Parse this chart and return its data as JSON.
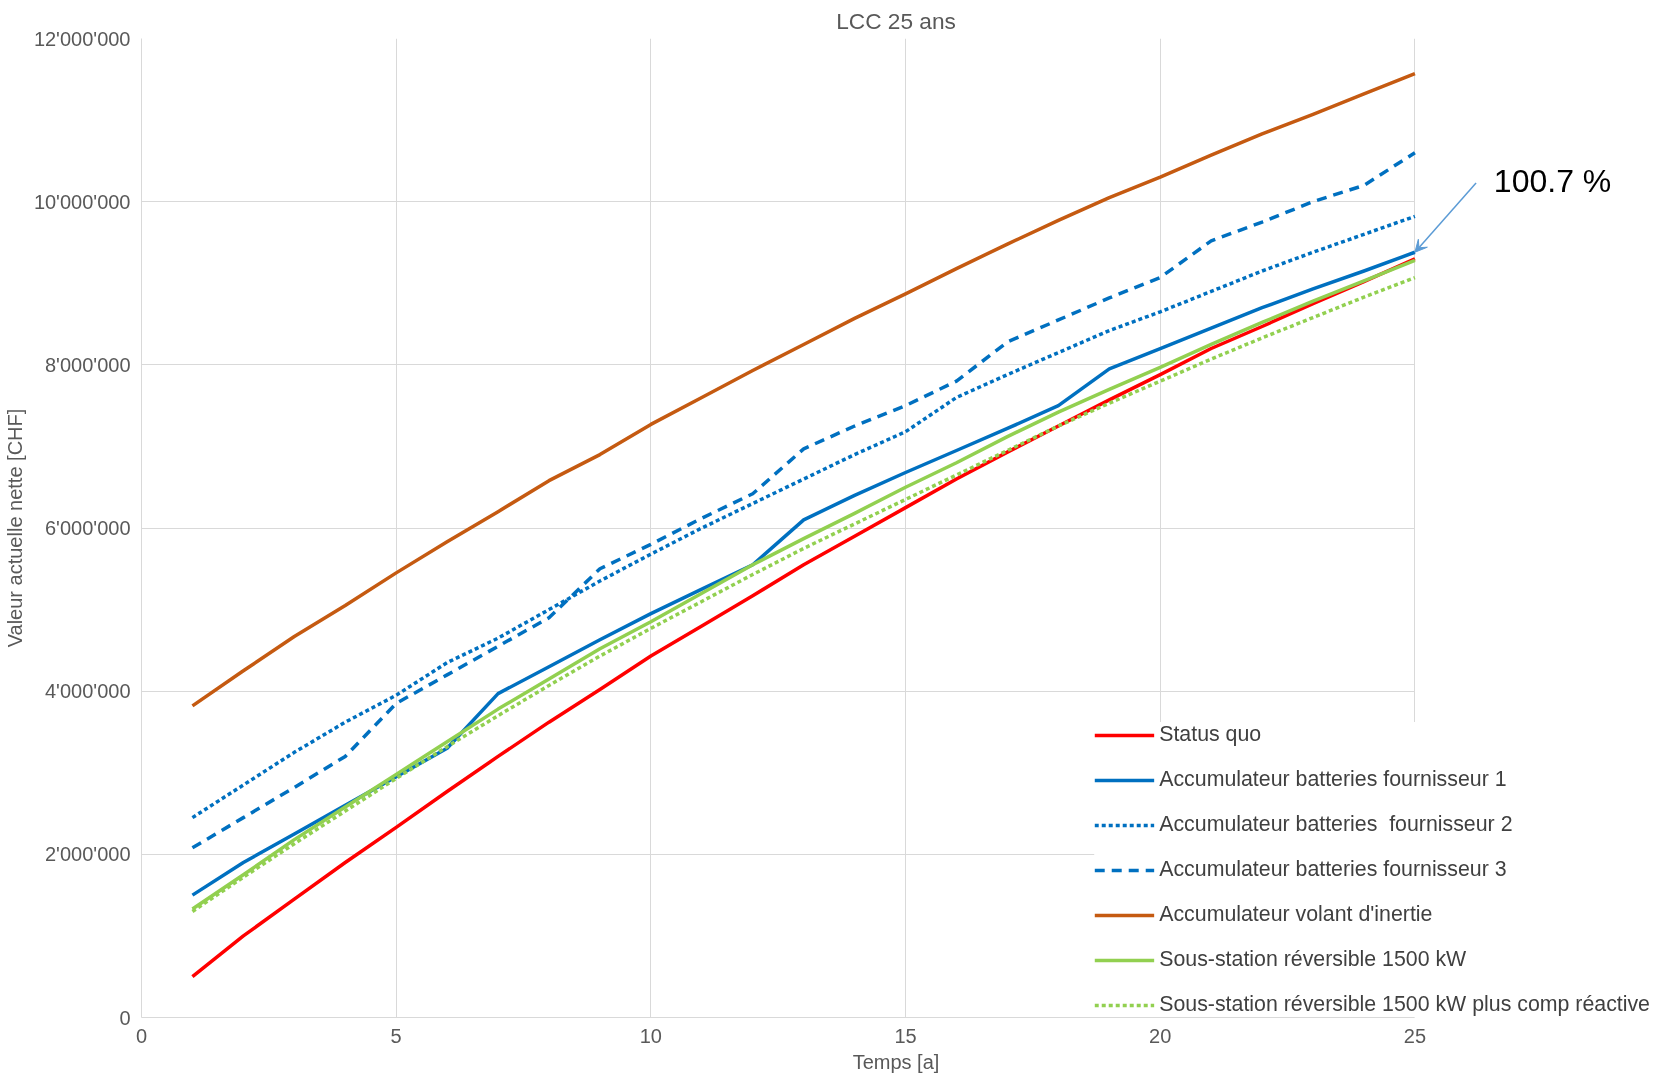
{
  "chart_data": {
    "type": "line",
    "title": "LCC 25 ans",
    "xlabel": "Temps [a]",
    "ylabel": "Valeur actuelle nette [CHF]",
    "x": [
      1,
      2,
      3,
      4,
      5,
      6,
      7,
      8,
      9,
      10,
      11,
      12,
      13,
      14,
      15,
      16,
      17,
      18,
      19,
      20,
      21,
      22,
      23,
      24,
      25
    ],
    "xlim": [
      0,
      25
    ],
    "xticks": [
      0,
      5,
      10,
      15,
      20,
      25
    ],
    "ylim": [
      0,
      12000000
    ],
    "yticks": [
      0,
      {
        "value": 2000000,
        "label": "2'000'000"
      },
      {
        "value": 4000000,
        "label": "4'000'000"
      },
      {
        "value": 6000000,
        "label": "6'000'000"
      },
      {
        "value": 8000000,
        "label": "8'000'000"
      },
      {
        "value": 10000000,
        "label": "10'000'000"
      },
      {
        "value": 12000000,
        "label": "12'000'000"
      }
    ],
    "grid": true,
    "legend": "bottom right",
    "marker": "none",
    "series": [
      {
        "name": "Status quo",
        "color": "#ff0000",
        "line_style": "solid",
        "values": [
          500000,
          1000000,
          1450000,
          1900000,
          2330000,
          2770000,
          3200000,
          3620000,
          4020000,
          4430000,
          4800000,
          5170000,
          5550000,
          5900000,
          6250000,
          6600000,
          6930000,
          7250000,
          7570000,
          7880000,
          8200000,
          8470000,
          8750000,
          9020000,
          9300000
        ]
      },
      {
        "name": "Accumulateur batteries fournisseur 1",
        "color": "#0070c0",
        "line_style": "solid",
        "values": [
          1500000,
          1900000,
          2250000,
          2600000,
          2950000,
          3300000,
          3970000,
          4300000,
          4630000,
          4950000,
          5250000,
          5550000,
          6100000,
          6400000,
          6680000,
          6950000,
          7220000,
          7500000,
          7950000,
          8200000,
          8450000,
          8700000,
          8930000,
          9150000,
          9380000
        ]
      },
      {
        "name": "Accumulateur batteries  fournisseur 2",
        "color": "#0070c0",
        "line_style": "dotted",
        "values": [
          2450000,
          2850000,
          3250000,
          3620000,
          3950000,
          4350000,
          4650000,
          5000000,
          5350000,
          5680000,
          6000000,
          6300000,
          6600000,
          6900000,
          7180000,
          7600000,
          7880000,
          8150000,
          8420000,
          8650000,
          8900000,
          9150000,
          9380000,
          9600000,
          9820000
        ]
      },
      {
        "name": "Accumulateur batteries fournisseur 3",
        "color": "#0070c0",
        "line_style": "dashed",
        "values": [
          2080000,
          2450000,
          2820000,
          3200000,
          3850000,
          4200000,
          4550000,
          4900000,
          5500000,
          5800000,
          6120000,
          6420000,
          6970000,
          7250000,
          7500000,
          7800000,
          8280000,
          8550000,
          8820000,
          9070000,
          9520000,
          9750000,
          10000000,
          10200000,
          10600000
        ]
      },
      {
        "name": "Accumulateur volant d'inertie",
        "color": "#c55a11",
        "line_style": "solid",
        "values": [
          3820000,
          4250000,
          4670000,
          5050000,
          5450000,
          5830000,
          6200000,
          6580000,
          6900000,
          7270000,
          7600000,
          7930000,
          8250000,
          8570000,
          8870000,
          9180000,
          9480000,
          9770000,
          10050000,
          10300000,
          10570000,
          10830000,
          11070000,
          11320000,
          11570000
        ]
      },
      {
        "name": "Sous-station réversible 1500 kW",
        "color": "#92d050",
        "line_style": "solid",
        "values": [
          1330000,
          1750000,
          2180000,
          2580000,
          2980000,
          3380000,
          3780000,
          4150000,
          4520000,
          4850000,
          5200000,
          5550000,
          5870000,
          6180000,
          6500000,
          6800000,
          7120000,
          7420000,
          7700000,
          7970000,
          8250000,
          8520000,
          8780000,
          9030000,
          9280000
        ]
      },
      {
        "name": "Sous-station réversible 1500 kW plus comp réactive",
        "color": "#92d050",
        "line_style": "dotted",
        "values": [
          1300000,
          1720000,
          2130000,
          2530000,
          2930000,
          3320000,
          3700000,
          4070000,
          4430000,
          4770000,
          5100000,
          5430000,
          5750000,
          6050000,
          6350000,
          6650000,
          6950000,
          7250000,
          7530000,
          7800000,
          8070000,
          8330000,
          8580000,
          8830000,
          9070000
        ]
      }
    ],
    "annotations": [
      {
        "text": "100.7 %",
        "x": 25,
        "y": 9380000
      }
    ]
  }
}
